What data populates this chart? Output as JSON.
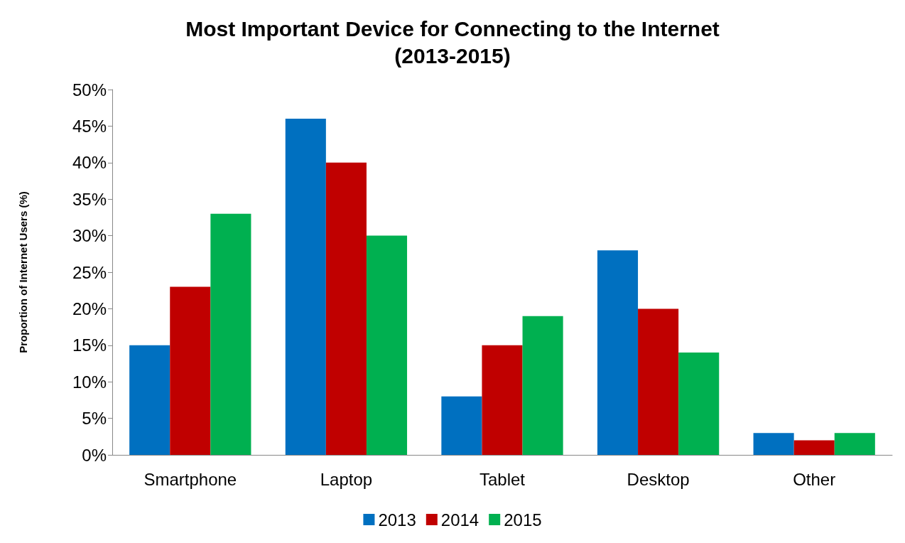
{
  "chart_data": {
    "type": "bar",
    "title": "Most Important Device for Connecting to the Internet\n(2013-2015)",
    "ylabel": "Proportion of Internet Users (%)",
    "categories": [
      "Smartphone",
      "Laptop",
      "Tablet",
      "Desktop",
      "Other"
    ],
    "series": [
      {
        "name": "2013",
        "color": "#0070c0",
        "values": [
          15,
          46,
          8,
          28,
          3
        ]
      },
      {
        "name": "2014",
        "color": "#c00000",
        "values": [
          23,
          40,
          15,
          20,
          2
        ]
      },
      {
        "name": "2015",
        "color": "#00b050",
        "values": [
          33,
          30,
          19,
          14,
          3
        ]
      }
    ],
    "ylim": [
      0,
      50
    ],
    "yticks": [
      {
        "value": 0,
        "label": "0%"
      },
      {
        "value": 5,
        "label": "5%"
      },
      {
        "value": 10,
        "label": "10%"
      },
      {
        "value": 15,
        "label": "15%"
      },
      {
        "value": 20,
        "label": "20%"
      },
      {
        "value": 25,
        "label": "25%"
      },
      {
        "value": 30,
        "label": "30%"
      },
      {
        "value": 35,
        "label": "35%"
      },
      {
        "value": 40,
        "label": "40%"
      },
      {
        "value": 45,
        "label": "45%"
      },
      {
        "value": 50,
        "label": "50%"
      }
    ],
    "grid": false,
    "legend": "bottom"
  }
}
